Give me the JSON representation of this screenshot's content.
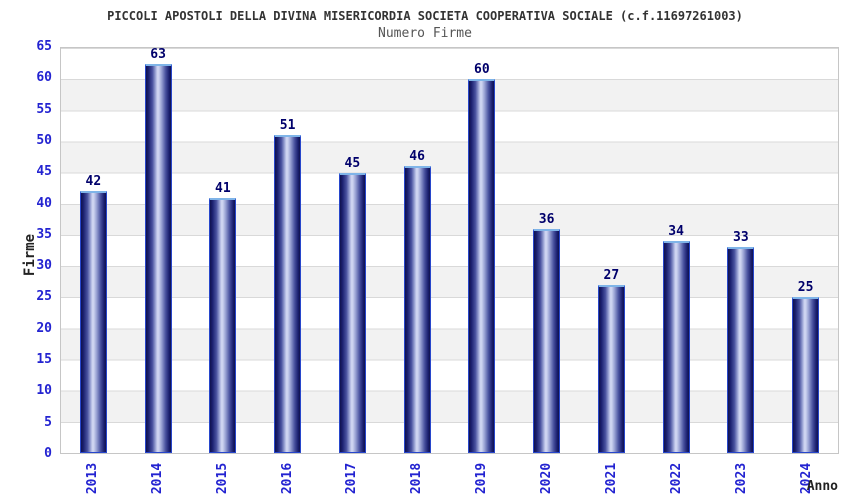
{
  "chart_data": {
    "type": "bar",
    "title": "PICCOLI APOSTOLI DELLA DIVINA MISERICORDIA SOCIETA COOPERATIVA SOCIALE (c.f.11697261003)",
    "subtitle": "Numero Firme",
    "xlabel": "Anno",
    "ylabel": "Firme",
    "categories": [
      "2013",
      "2014",
      "2015",
      "2016",
      "2017",
      "2018",
      "2019",
      "2020",
      "2021",
      "2022",
      "2023",
      "2024"
    ],
    "values": [
      42,
      63,
      41,
      51,
      45,
      46,
      60,
      36,
      27,
      34,
      33,
      25
    ],
    "ylim": [
      0,
      65
    ],
    "ytick_step": 5,
    "grid": true,
    "legend": false,
    "band_fill": "alternating horizontal stripes every 5 units",
    "colors": {
      "bar_dark": "#10124e",
      "bar_mid": "#4a53a0",
      "bar_light": "#cdd3f0",
      "bar_edge": "#2746cb",
      "bar_cap": "#7fb4e8",
      "tick_text": "#2323d1",
      "value_text": "#00006b",
      "title_text": "#333333",
      "subtitle_text": "#555555",
      "axis_label_text": "#222222",
      "band_gray": "#f2f2f2",
      "gridline": "#d9d9d9",
      "plot_border": "#c6c6c6"
    }
  }
}
